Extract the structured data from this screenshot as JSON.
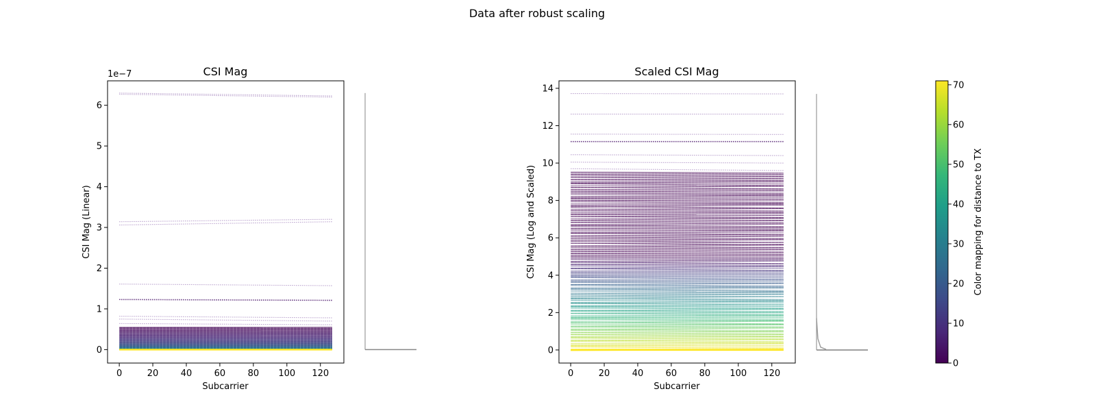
{
  "figure": {
    "title": "Data after robust scaling"
  },
  "chart_data": [
    {
      "type": "line",
      "title": "CSI Mag",
      "xlabel": "Subcarrier",
      "ylabel": "CSI Mag (Linear)",
      "y_offset_label": "1e−7",
      "xlim": [
        -7,
        134
      ],
      "ylim": [
        -0.33,
        6.6
      ],
      "x_ticks": [
        0,
        20,
        40,
        60,
        80,
        100,
        120
      ],
      "y_ticks": [
        0,
        1,
        2,
        3,
        4,
        5,
        6
      ],
      "x_tick_labels": [
        "0",
        "20",
        "40",
        "60",
        "80",
        "100",
        "120"
      ],
      "y_tick_labels": [
        "0",
        "1",
        "2",
        "3",
        "4",
        "5",
        "6"
      ],
      "x_range": [
        0,
        127
      ],
      "highlight_levels": [
        {
          "start": 6.3,
          "end": 6.23
        },
        {
          "start": 6.27,
          "end": 6.2
        },
        {
          "start": 3.14,
          "end": 3.2
        },
        {
          "start": 3.06,
          "end": 3.14
        },
        {
          "start": 1.61,
          "end": 1.57
        },
        {
          "start": 1.23,
          "end": 1.21
        },
        {
          "start": 0.82,
          "end": 0.78
        },
        {
          "start": 0.75,
          "end": 0.7
        },
        {
          "start": 0.64,
          "end": 0.61
        }
      ],
      "dense_range": [
        0.0,
        0.55
      ],
      "side_distribution": {
        "peak": 6.3,
        "base": 0.0
      }
    },
    {
      "type": "line",
      "title": "Scaled CSI Mag",
      "xlabel": "Subcarrier",
      "ylabel": "CSI Mag (Log and Scaled)",
      "xlim": [
        -7,
        134
      ],
      "ylim": [
        -0.7,
        14.4
      ],
      "x_ticks": [
        0,
        20,
        40,
        60,
        80,
        100,
        120
      ],
      "y_ticks": [
        0,
        2,
        4,
        6,
        8,
        10,
        12,
        14
      ],
      "x_tick_labels": [
        "0",
        "20",
        "40",
        "60",
        "80",
        "100",
        "120"
      ],
      "y_tick_labels": [
        "0",
        "2",
        "4",
        "6",
        "8",
        "10",
        "12",
        "14"
      ],
      "x_range": [
        0,
        127
      ],
      "highlight_levels": [
        {
          "start": 13.72,
          "end": 13.7
        },
        {
          "start": 12.62,
          "end": 12.62
        },
        {
          "start": 11.55,
          "end": 11.53
        },
        {
          "start": 11.15,
          "end": 11.15
        },
        {
          "start": 10.45,
          "end": 10.4
        },
        {
          "start": 10.05,
          "end": 10.0
        },
        {
          "start": 9.7,
          "end": 9.6
        }
      ],
      "dense_range": [
        0.0,
        9.5
      ],
      "side_distribution": {
        "peak": 13.7,
        "base": 0.0,
        "bump": 1.7
      }
    }
  ],
  "colorbar": {
    "label": "Color mapping for distance to TX",
    "range": [
      0,
      71
    ],
    "ticks": [
      0,
      10,
      20,
      30,
      40,
      50,
      60,
      70
    ],
    "tick_labels": [
      "0",
      "10",
      "20",
      "30",
      "40",
      "50",
      "60",
      "70"
    ],
    "colormap": "viridis",
    "colors": [
      "#440154",
      "#482878",
      "#3e4a89",
      "#31688e",
      "#26828e",
      "#1f9e89",
      "#35b779",
      "#6ece58",
      "#b5de2b",
      "#fde725"
    ]
  }
}
